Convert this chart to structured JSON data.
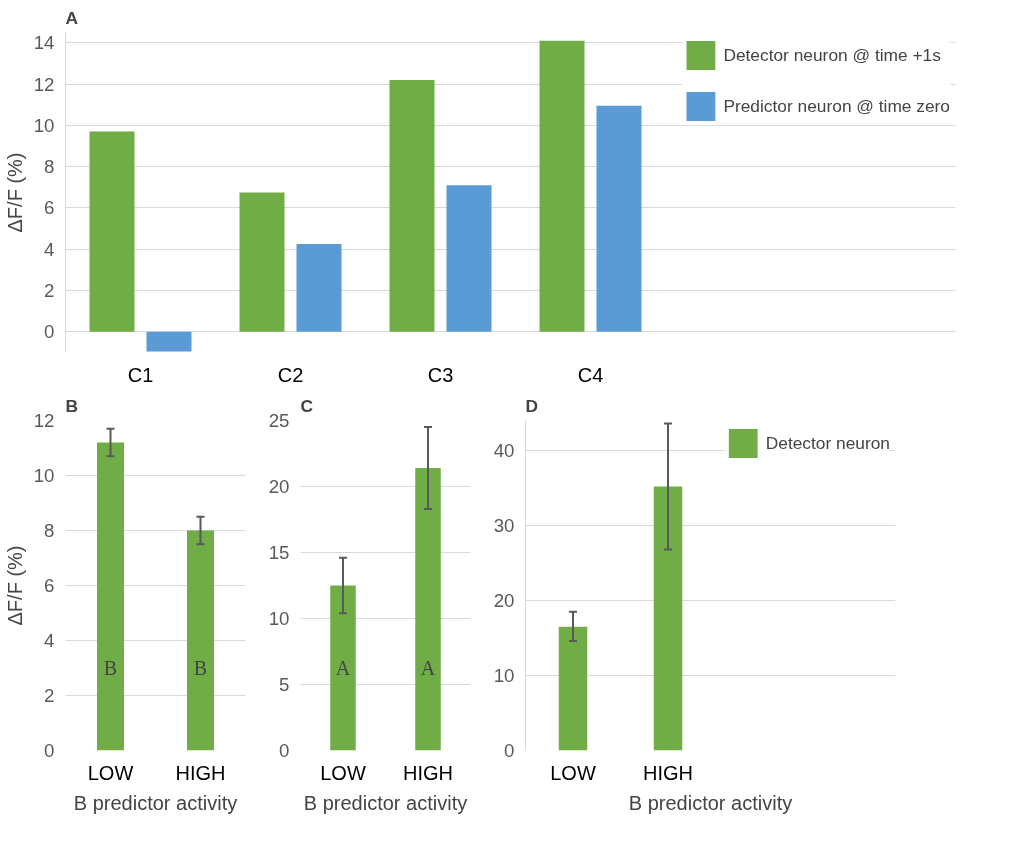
{
  "chart_data": [
    {
      "type": "bar",
      "title": "A",
      "ylabel": "ΔF/F (%)",
      "categories": [
        "C1",
        "C2",
        "C3",
        "C4"
      ],
      "series": [
        {
          "name": "Detector neuron @ time +1s",
          "color": "#70ad47",
          "values": [
            9.7,
            6.75,
            12.2,
            14.1
          ]
        },
        {
          "name": "Predictor neuron @ time zero",
          "color": "#5b9bd5",
          "values": [
            -0.95,
            4.25,
            7.1,
            10.95
          ]
        }
      ],
      "ylim": [
        -1,
        14.5
      ],
      "yticks": [
        0,
        2,
        4,
        6,
        8,
        10,
        12,
        14
      ],
      "grid": "y",
      "legend": "top right"
    },
    {
      "type": "bar",
      "title": "B",
      "ylabel": "ΔF/F (%)",
      "xlabel": "B predictor activity",
      "categories": [
        "LOW",
        "HIGH"
      ],
      "series": [
        {
          "color": "#70ad47",
          "values": [
            11.2,
            8.0
          ],
          "errors": [
            [
              10.7,
              11.7
            ],
            [
              7.5,
              8.5
            ]
          ]
        }
      ],
      "ylim": [
        0,
        12
      ],
      "yticks": [
        0,
        2,
        4,
        6,
        8,
        10,
        12
      ],
      "grid": "y",
      "annotations": [
        "B",
        "B"
      ]
    },
    {
      "type": "bar",
      "title": "C",
      "xlabel": "B predictor activity",
      "categories": [
        "LOW",
        "HIGH"
      ],
      "series": [
        {
          "color": "#70ad47",
          "values": [
            12.5,
            21.4
          ],
          "errors": [
            [
              10.4,
              14.6
            ],
            [
              18.3,
              24.5
            ]
          ]
        }
      ],
      "ylim": [
        0,
        25
      ],
      "yticks": [
        0,
        5,
        10,
        15,
        20,
        25
      ],
      "grid": "y",
      "annotations": [
        "A",
        "A"
      ]
    },
    {
      "type": "bar",
      "title": "D",
      "xlabel": "B predictor activity",
      "categories": [
        "LOW",
        "HIGH"
      ],
      "series": [
        {
          "name": "Detector neuron",
          "color": "#70ad47",
          "values": [
            16.5,
            35.2
          ],
          "errors": [
            [
              14.6,
              18.5
            ],
            [
              26.8,
              43.6
            ]
          ]
        }
      ],
      "ylim": [
        0,
        44
      ],
      "yticks": [
        0,
        10,
        20,
        30,
        40
      ],
      "grid": "y",
      "legend": "top right"
    }
  ]
}
